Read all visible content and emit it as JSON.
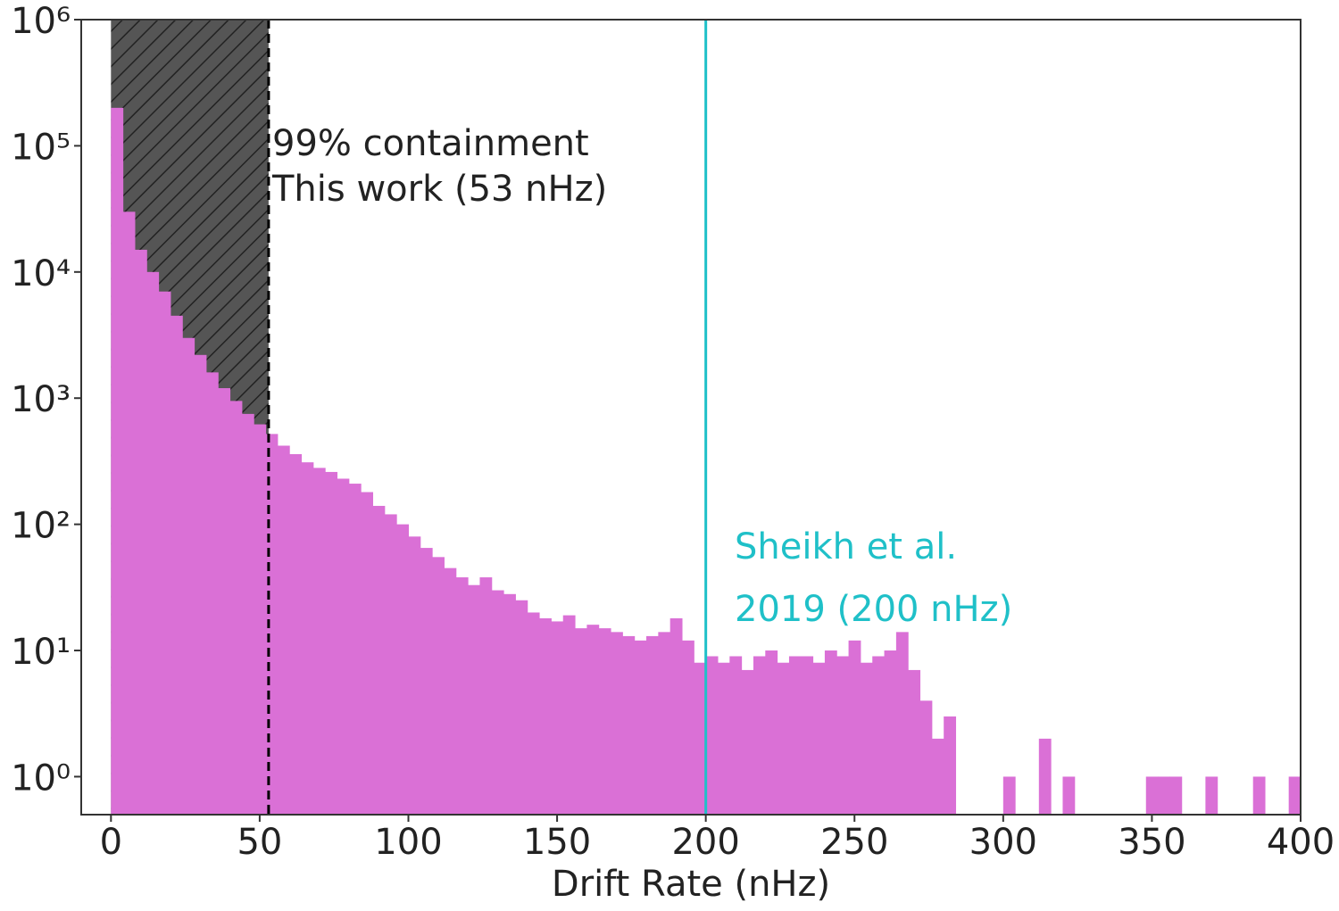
{
  "chart_data": {
    "type": "histogram",
    "x_label": "Drift Rate (nHz)",
    "bins": [
      0,
      4,
      8,
      12,
      16,
      20,
      24,
      28,
      32,
      36,
      40,
      44,
      48,
      52,
      56,
      60,
      64,
      68,
      72,
      76,
      80,
      84,
      88,
      92,
      96,
      100,
      104,
      108,
      112,
      116,
      120,
      124,
      128,
      132,
      136,
      140,
      144,
      148,
      152,
      156,
      160,
      164,
      168,
      172,
      176,
      180,
      184,
      188,
      192,
      196,
      200,
      204,
      208,
      212,
      216,
      220,
      224,
      228,
      232,
      236,
      240,
      244,
      248,
      252,
      256,
      260,
      264,
      268,
      272,
      276,
      280,
      284,
      288,
      292,
      296,
      300,
      304,
      308,
      312,
      316,
      320,
      324,
      328,
      332,
      336,
      340,
      344,
      348,
      352,
      356,
      360,
      364,
      368,
      372,
      376,
      380,
      384,
      388,
      392,
      396,
      400
    ],
    "counts": [
      200000,
      30000,
      15000,
      10000,
      7000,
      4500,
      3000,
      2200,
      1600,
      1200,
      950,
      750,
      620,
      520,
      420,
      360,
      310,
      280,
      260,
      230,
      210,
      180,
      140,
      120,
      100,
      80,
      65,
      55,
      45,
      38,
      33,
      38,
      30,
      28,
      25,
      20,
      18,
      17,
      19,
      15,
      16,
      15,
      14,
      13,
      12,
      13,
      14,
      18,
      12,
      8,
      9,
      8,
      9,
      7,
      9,
      10,
      8,
      9,
      9,
      8,
      10,
      9,
      12,
      8,
      9,
      10,
      14,
      7,
      4,
      2,
      3,
      0,
      0,
      0,
      0,
      1,
      0,
      0,
      2,
      0,
      1,
      0,
      0,
      0,
      0,
      0,
      0,
      1,
      1,
      1,
      0,
      0,
      1,
      0,
      0,
      0,
      1,
      0,
      0,
      1
    ],
    "color": "#da70d6",
    "log_y": true,
    "xlim": [
      -10,
      400
    ],
    "xticks": [
      0,
      50,
      100,
      150,
      200,
      250,
      300,
      350,
      400
    ],
    "ylim": [
      0.5,
      1000000
    ],
    "yticks": [
      {
        "value": 1,
        "label": "10⁰"
      },
      {
        "value": 10,
        "label": "10¹"
      },
      {
        "value": 100,
        "label": "10²"
      },
      {
        "value": 1000,
        "label": "10³"
      },
      {
        "value": 10000,
        "label": "10⁴"
      },
      {
        "value": 100000,
        "label": "10⁵"
      },
      {
        "value": 1000000,
        "label": "10⁶"
      }
    ],
    "shaded_region": [
      0,
      53
    ],
    "vlines": [
      {
        "x": 53,
        "color": "#000000",
        "text": [
          "99% containment",
          "This work (53 nHz)"
        ]
      },
      {
        "x": 200,
        "color": "#1fc0c8",
        "text": [
          "Sheikh et al.",
          "2019 (200 nHz)"
        ]
      }
    ]
  }
}
